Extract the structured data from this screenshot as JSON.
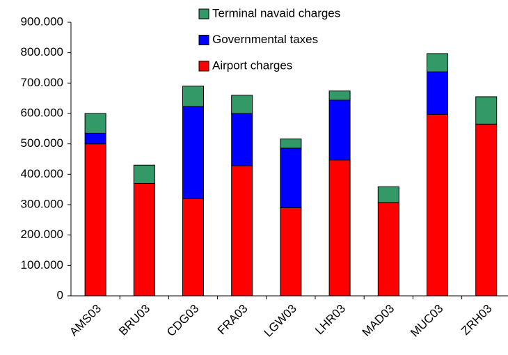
{
  "chart_data": {
    "type": "stacked-bar",
    "categories": [
      "AMS03",
      "BRU03",
      "CDG03",
      "FRA03",
      "LGW03",
      "LHR03",
      "MAD03",
      "MUC03",
      "ZRH03"
    ],
    "series": [
      {
        "name": "Airport charges",
        "color": "#ff0000",
        "values": [
          500000,
          370000,
          320000,
          428000,
          290000,
          447000,
          307000,
          597000,
          565000
        ]
      },
      {
        "name": "Governmental taxes",
        "color": "#0000ff",
        "values": [
          35000,
          0,
          303000,
          172000,
          196000,
          197000,
          0,
          140000,
          0
        ]
      },
      {
        "name": "Terminal navaid charges",
        "color": "#339966",
        "values": [
          65000,
          60000,
          67000,
          60000,
          30000,
          30000,
          52000,
          60000,
          90000
        ]
      }
    ],
    "ylim": [
      0,
      900000
    ],
    "yticks": [
      0,
      {
        "value": 100000,
        "label": "100.000"
      },
      {
        "value": 200000,
        "label": "200.000"
      },
      {
        "value": 300000,
        "label": "300.000"
      },
      {
        "value": 400000,
        "label": "400.000"
      },
      {
        "value": 500000,
        "label": "500.000"
      },
      {
        "value": 600000,
        "label": "600.000"
      },
      {
        "value": 700000,
        "label": "700.000"
      },
      {
        "value": 800000,
        "label": "800.000"
      },
      {
        "value": 900000,
        "label": "900.000"
      }
    ],
    "grid": false,
    "legend": "top"
  }
}
